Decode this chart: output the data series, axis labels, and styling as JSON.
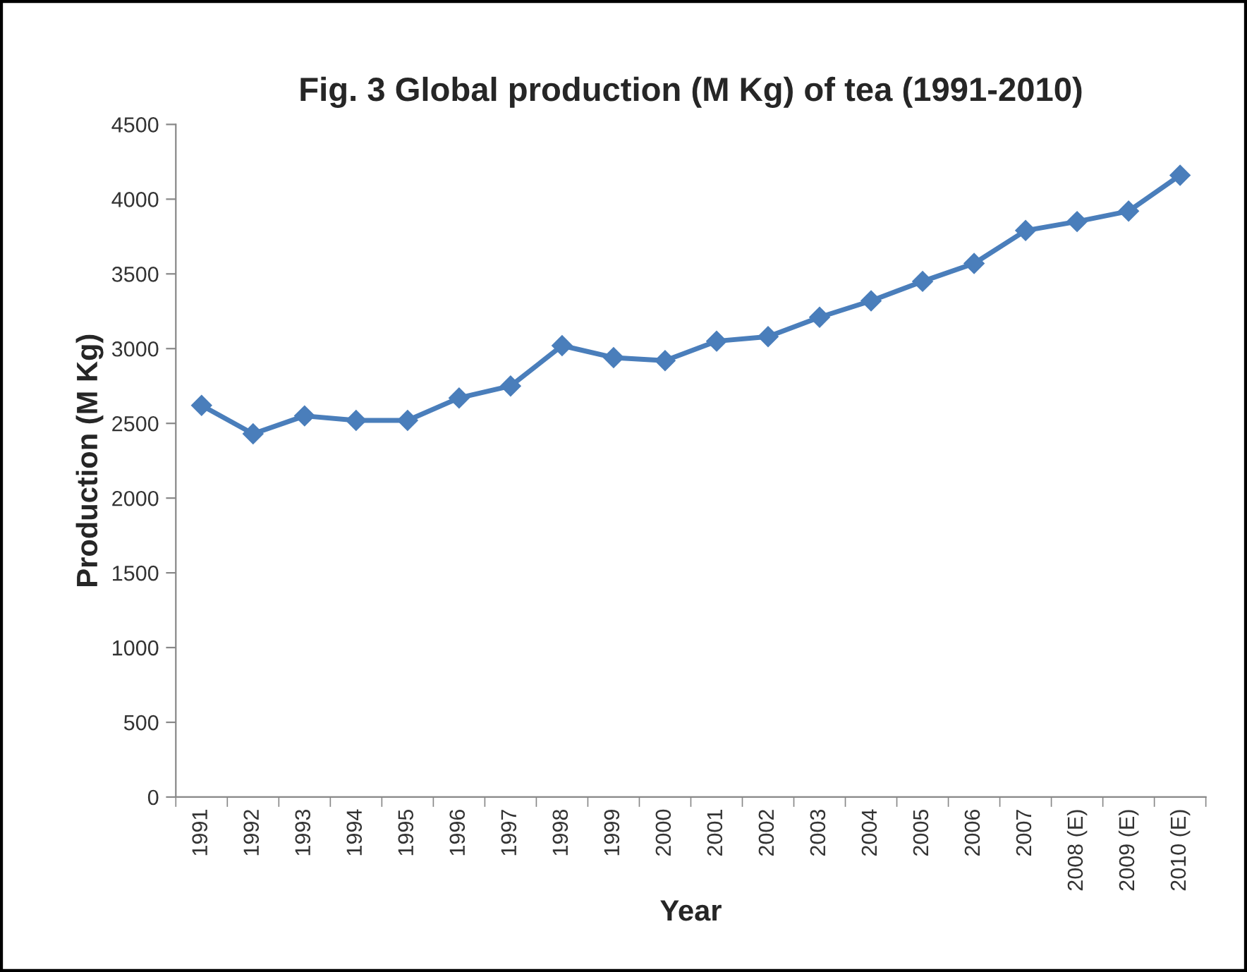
{
  "chart_data": {
    "type": "line",
    "title": "Fig. 3 Global production (M Kg) of tea (1991-2010)",
    "xlabel": "Year",
    "ylabel": "Production (M Kg)",
    "categories": [
      "1991",
      "1992",
      "1993",
      "1994",
      "1995",
      "1996",
      "1997",
      "1998",
      "1999",
      "2000",
      "2001",
      "2002",
      "2003",
      "2004",
      "2005",
      "2006",
      "2007",
      "2008 (E)",
      "2009 (E)",
      "2010 (E)"
    ],
    "series": [
      {
        "color": "#4a7ebb",
        "values": [
          2620,
          2430,
          2550,
          2520,
          2520,
          2670,
          2750,
          3020,
          2940,
          2920,
          3050,
          3080,
          3210,
          3320,
          3450,
          3570,
          3790,
          3850,
          3920,
          4160
        ]
      }
    ],
    "ylim": [
      0,
      4500
    ],
    "yticks": [
      0,
      500,
      1000,
      1500,
      2000,
      2500,
      3000,
      3500,
      4000,
      4500
    ],
    "grid": false,
    "legend": false,
    "marker": "diamond",
    "line_style": "solid"
  }
}
